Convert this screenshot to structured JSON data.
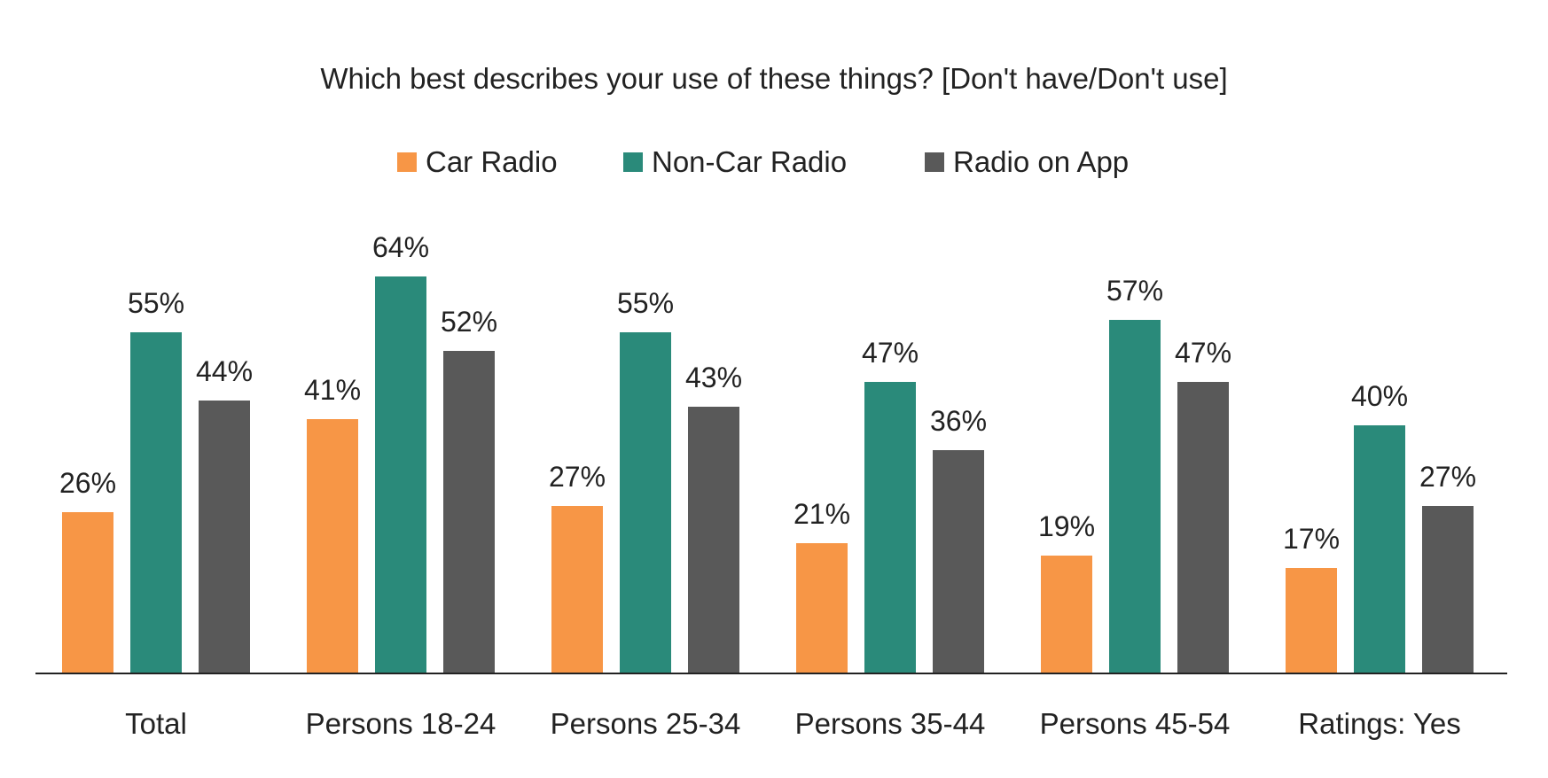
{
  "chart_data": {
    "type": "bar",
    "title": "Which best describes your use of these things? [Don't have/Don't use]",
    "categories": [
      "Total",
      "Persons 18-24",
      "Persons 25-34",
      "Persons 35-44",
      "Persons 45-54",
      "Ratings: Yes"
    ],
    "series": [
      {
        "name": "Car Radio",
        "color": "#F79646",
        "values": [
          26,
          41,
          27,
          21,
          19,
          17
        ]
      },
      {
        "name": "Non-Car Radio",
        "color": "#2A8A7A",
        "values": [
          55,
          64,
          55,
          47,
          57,
          40
        ]
      },
      {
        "name": "Radio on App",
        "color": "#595959",
        "values": [
          44,
          52,
          43,
          36,
          47,
          27
        ]
      }
    ],
    "value_suffix": "%",
    "ylim": [
      0,
      100
    ],
    "grid": false,
    "legend_position": "top-center",
    "data_labels": true
  }
}
